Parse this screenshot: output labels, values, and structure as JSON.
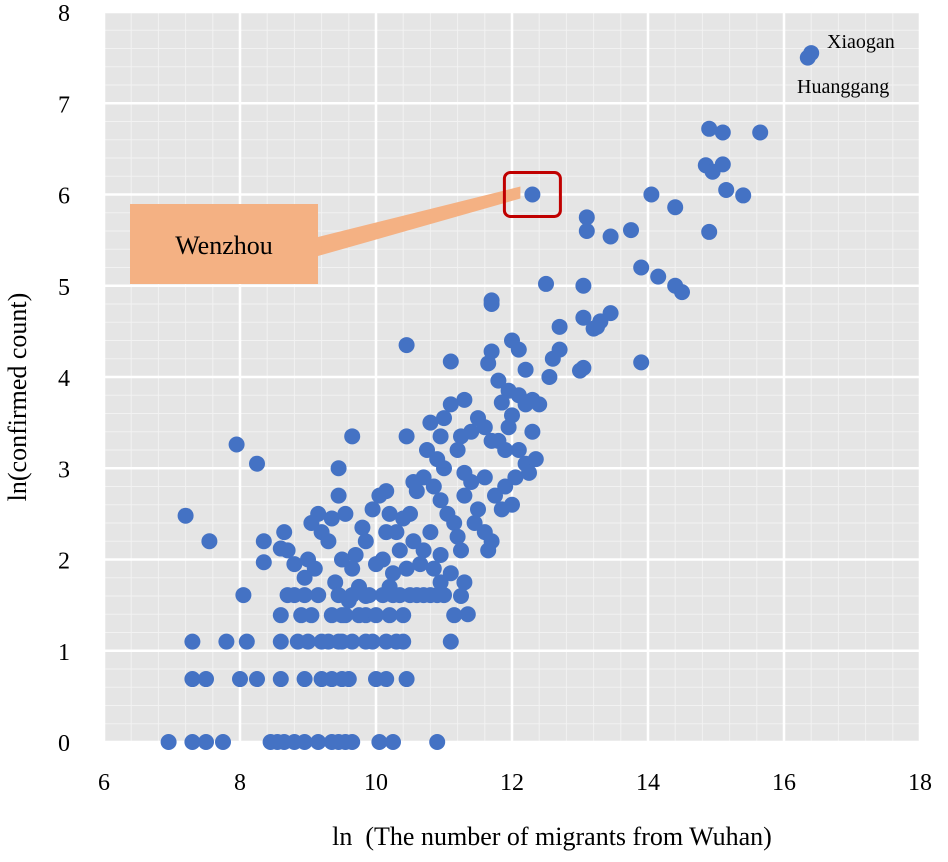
{
  "chart_data": {
    "type": "scatter",
    "xlabel": "ln  (The number of migrants from Wuhan)",
    "ylabel": "ln(confirmed count)",
    "xlim": [
      6,
      18
    ],
    "ylim": [
      0,
      8
    ],
    "x_ticks": [
      6,
      8,
      10,
      12,
      14,
      16,
      18
    ],
    "y_ticks": [
      0,
      1,
      2,
      3,
      4,
      5,
      6,
      7,
      8
    ],
    "grid": true,
    "marker_color": "#4472C4",
    "plot_background": "#E5E5E5",
    "annotations": [
      {
        "label": "Xiaogan",
        "x": 16.4,
        "y": 7.55
      },
      {
        "label": "Huanggang",
        "x": 16.35,
        "y": 7.5
      }
    ],
    "callout": {
      "label": "Wenzhou",
      "x": 12.3,
      "y": 6.0,
      "fill": "#F4B183",
      "highlight": "#C00000"
    },
    "points": [
      [
        16.4,
        7.55
      ],
      [
        16.35,
        7.5
      ],
      [
        14.9,
        6.72
      ],
      [
        15.1,
        6.68
      ],
      [
        15.65,
        6.68
      ],
      [
        14.85,
        6.32
      ],
      [
        15.1,
        6.33
      ],
      [
        14.95,
        6.25
      ],
      [
        15.15,
        6.05
      ],
      [
        15.4,
        5.99
      ],
      [
        14.05,
        6.0
      ],
      [
        14.4,
        5.86
      ],
      [
        14.9,
        5.59
      ],
      [
        13.1,
        5.75
      ],
      [
        13.45,
        5.54
      ],
      [
        13.75,
        5.61
      ],
      [
        13.1,
        5.6
      ],
      [
        12.3,
        6.0
      ],
      [
        13.9,
        5.2
      ],
      [
        14.15,
        5.1
      ],
      [
        14.4,
        5.0
      ],
      [
        14.5,
        4.93
      ],
      [
        13.05,
        5.0
      ],
      [
        12.5,
        5.02
      ],
      [
        11.7,
        4.84
      ],
      [
        11.7,
        4.8
      ],
      [
        13.45,
        4.7
      ],
      [
        13.3,
        4.61
      ],
      [
        13.25,
        4.55
      ],
      [
        13.05,
        4.65
      ],
      [
        13.2,
        4.53
      ],
      [
        12.7,
        4.55
      ],
      [
        13.9,
        4.16
      ],
      [
        13.05,
        4.1
      ],
      [
        13.0,
        4.07
      ],
      [
        12.7,
        4.3
      ],
      [
        12.6,
        4.2
      ],
      [
        12.0,
        4.4
      ],
      [
        12.1,
        4.3
      ],
      [
        11.7,
        4.28
      ],
      [
        11.65,
        4.15
      ],
      [
        12.55,
        4.0
      ],
      [
        12.2,
        4.08
      ],
      [
        12.3,
        3.75
      ],
      [
        11.8,
        3.96
      ],
      [
        11.95,
        3.85
      ],
      [
        12.1,
        3.8
      ],
      [
        12.2,
        3.7
      ],
      [
        11.85,
        3.72
      ],
      [
        11.1,
        4.17
      ],
      [
        10.45,
        4.35
      ],
      [
        12.3,
        3.4
      ],
      [
        12.4,
        3.7
      ],
      [
        11.3,
        3.75
      ],
      [
        11.5,
        3.55
      ],
      [
        11.6,
        3.45
      ],
      [
        11.4,
        3.4
      ],
      [
        11.25,
        3.35
      ],
      [
        11.2,
        3.2
      ],
      [
        11.7,
        3.3
      ],
      [
        11.8,
        3.3
      ],
      [
        11.9,
        3.2
      ],
      [
        12.1,
        3.2
      ],
      [
        12.2,
        3.05
      ],
      [
        12.35,
        3.1
      ],
      [
        12.25,
        2.95
      ],
      [
        12.05,
        2.9
      ],
      [
        11.9,
        2.8
      ],
      [
        11.75,
        2.7
      ],
      [
        11.6,
        2.9
      ],
      [
        11.4,
        2.85
      ],
      [
        11.3,
        2.95
      ],
      [
        11.0,
        3.0
      ],
      [
        10.95,
        3.35
      ],
      [
        10.9,
        3.1
      ],
      [
        10.75,
        3.2
      ],
      [
        10.7,
        2.9
      ],
      [
        10.85,
        2.8
      ],
      [
        10.95,
        2.65
      ],
      [
        11.05,
        2.5
      ],
      [
        11.15,
        2.4
      ],
      [
        11.3,
        2.7
      ],
      [
        11.5,
        2.55
      ],
      [
        11.45,
        2.4
      ],
      [
        11.6,
        2.3
      ],
      [
        11.85,
        2.55
      ],
      [
        12.0,
        2.6
      ],
      [
        11.7,
        2.2
      ],
      [
        11.65,
        2.1
      ],
      [
        10.8,
        3.5
      ],
      [
        11.0,
        3.55
      ],
      [
        11.1,
        3.7
      ],
      [
        12.0,
        3.58
      ],
      [
        11.95,
        3.45
      ],
      [
        10.55,
        2.85
      ],
      [
        10.6,
        2.75
      ],
      [
        10.5,
        2.5
      ],
      [
        10.4,
        2.45
      ],
      [
        10.3,
        2.3
      ],
      [
        10.35,
        2.1
      ],
      [
        10.55,
        2.2
      ],
      [
        10.7,
        2.1
      ],
      [
        10.8,
        2.3
      ],
      [
        10.95,
        2.05
      ],
      [
        10.85,
        1.9
      ],
      [
        10.65,
        1.95
      ],
      [
        10.45,
        1.9
      ],
      [
        10.25,
        1.85
      ],
      [
        10.1,
        2.0
      ],
      [
        10.15,
        2.3
      ],
      [
        10.2,
        2.5
      ],
      [
        10.05,
        2.7
      ],
      [
        10.15,
        2.75
      ],
      [
        9.95,
        2.55
      ],
      [
        9.8,
        2.35
      ],
      [
        9.85,
        2.2
      ],
      [
        9.7,
        2.05
      ],
      [
        9.65,
        1.9
      ],
      [
        9.55,
        2.5
      ],
      [
        9.45,
        2.7
      ],
      [
        9.35,
        2.45
      ],
      [
        9.3,
        2.2
      ],
      [
        9.2,
        2.3
      ],
      [
        9.15,
        2.5
      ],
      [
        9.05,
        2.4
      ],
      [
        9.0,
        2.0
      ],
      [
        9.1,
        1.9
      ],
      [
        8.95,
        1.8
      ],
      [
        8.8,
        1.95
      ],
      [
        8.7,
        2.1
      ],
      [
        8.65,
        2.3
      ],
      [
        9.45,
        3.0
      ],
      [
        9.65,
        3.35
      ],
      [
        10.45,
        3.35
      ],
      [
        9.5,
        2.0
      ],
      [
        9.4,
        1.75
      ],
      [
        9.75,
        1.7
      ],
      [
        9.6,
        1.55
      ],
      [
        9.85,
        1.6
      ],
      [
        10.0,
        1.95
      ],
      [
        10.2,
        1.7
      ],
      [
        11.2,
        2.25
      ],
      [
        11.25,
        2.1
      ],
      [
        10.95,
        1.75
      ],
      [
        11.1,
        1.85
      ],
      [
        11.3,
        1.75
      ],
      [
        11.25,
        1.6
      ],
      [
        11.35,
        1.4
      ],
      [
        7.2,
        2.48
      ],
      [
        7.55,
        2.2
      ],
      [
        7.95,
        3.26
      ],
      [
        8.25,
        3.05
      ],
      [
        8.35,
        2.2
      ],
      [
        8.35,
        1.97
      ],
      [
        8.6,
        2.12
      ],
      [
        8.05,
        1.61
      ],
      [
        8.6,
        1.39
      ],
      [
        8.7,
        1.61
      ],
      [
        8.8,
        1.61
      ],
      [
        8.9,
        1.39
      ],
      [
        8.95,
        1.61
      ],
      [
        9.05,
        1.39
      ],
      [
        9.15,
        1.61
      ],
      [
        9.35,
        1.39
      ],
      [
        9.45,
        1.61
      ],
      [
        9.5,
        1.39
      ],
      [
        9.55,
        1.39
      ],
      [
        9.65,
        1.61
      ],
      [
        9.75,
        1.39
      ],
      [
        9.85,
        1.39
      ],
      [
        9.9,
        1.61
      ],
      [
        10.0,
        1.39
      ],
      [
        10.1,
        1.61
      ],
      [
        10.2,
        1.39
      ],
      [
        10.25,
        1.61
      ],
      [
        10.35,
        1.61
      ],
      [
        10.4,
        1.39
      ],
      [
        10.5,
        1.61
      ],
      [
        10.6,
        1.61
      ],
      [
        10.7,
        1.61
      ],
      [
        10.8,
        1.61
      ],
      [
        10.9,
        1.61
      ],
      [
        11.0,
        1.61
      ],
      [
        11.15,
        1.39
      ],
      [
        7.3,
        1.1
      ],
      [
        7.8,
        1.1
      ],
      [
        8.1,
        1.1
      ],
      [
        8.6,
        1.1
      ],
      [
        8.85,
        1.1
      ],
      [
        9.0,
        1.1
      ],
      [
        9.2,
        1.1
      ],
      [
        9.3,
        1.1
      ],
      [
        9.45,
        1.1
      ],
      [
        9.5,
        1.1
      ],
      [
        9.65,
        1.1
      ],
      [
        9.85,
        1.1
      ],
      [
        9.95,
        1.1
      ],
      [
        10.15,
        1.1
      ],
      [
        10.3,
        1.1
      ],
      [
        10.4,
        1.1
      ],
      [
        11.1,
        1.1
      ],
      [
        7.3,
        0.69
      ],
      [
        7.5,
        0.69
      ],
      [
        8.0,
        0.69
      ],
      [
        8.25,
        0.69
      ],
      [
        8.6,
        0.69
      ],
      [
        8.95,
        0.69
      ],
      [
        9.2,
        0.69
      ],
      [
        9.35,
        0.69
      ],
      [
        9.5,
        0.69
      ],
      [
        9.6,
        0.69
      ],
      [
        10.0,
        0.69
      ],
      [
        10.15,
        0.69
      ],
      [
        10.45,
        0.69
      ],
      [
        6.95,
        0
      ],
      [
        7.3,
        0
      ],
      [
        7.5,
        0
      ],
      [
        7.75,
        0
      ],
      [
        8.45,
        0
      ],
      [
        8.55,
        0
      ],
      [
        8.65,
        0
      ],
      [
        8.8,
        0
      ],
      [
        8.95,
        0
      ],
      [
        9.15,
        0
      ],
      [
        9.35,
        0
      ],
      [
        9.45,
        0
      ],
      [
        9.55,
        0
      ],
      [
        9.65,
        0
      ],
      [
        10.05,
        0
      ],
      [
        10.25,
        0
      ],
      [
        10.9,
        0
      ]
    ]
  }
}
